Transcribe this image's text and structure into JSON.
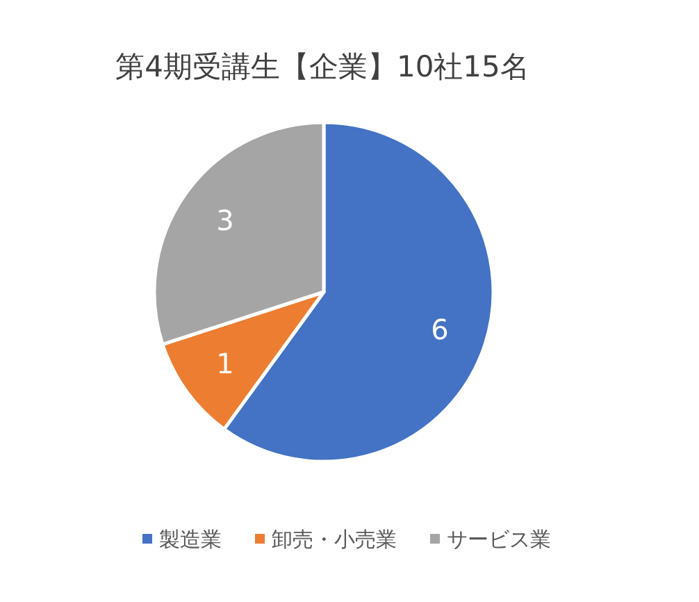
{
  "chart_data": {
    "type": "pie",
    "title": "第4期受講生【企業】10社15名",
    "categories": [
      "製造業",
      "卸売・小売業",
      "サービス業"
    ],
    "values": [
      6,
      1,
      3
    ],
    "colors": [
      "#4472c4",
      "#ed7d31",
      "#a5a5a5"
    ],
    "data_labels": true,
    "legend": "bottom"
  }
}
